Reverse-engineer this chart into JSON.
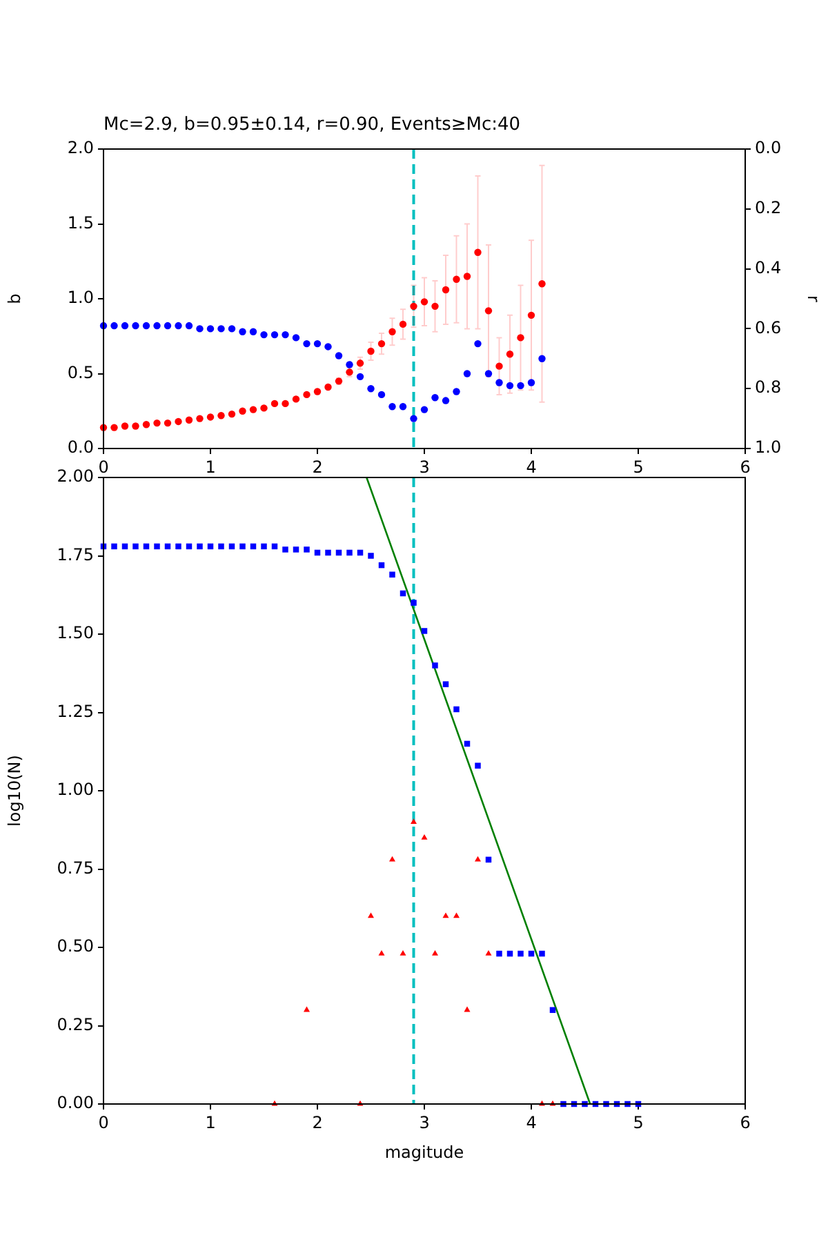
{
  "chart_data": [
    {
      "type": "scatter",
      "title": "Mc=2.9, b=0.95±0.14, r=0.90, Events≥Mc:40",
      "ylabel": "b",
      "y2label": "r",
      "xlim": [
        0,
        6
      ],
      "xticks": [
        0,
        1,
        2,
        3,
        4,
        5,
        6
      ],
      "ylim": [
        0,
        2
      ],
      "yticks": [
        {
          "value": 0,
          "label": "0.0"
        },
        {
          "value": 0.5,
          "label": "0.5"
        },
        {
          "value": 1,
          "label": "1.0"
        },
        {
          "value": 1.5,
          "label": "1.5"
        },
        {
          "value": 2,
          "label": "2.0"
        }
      ],
      "y2lim": [
        1,
        0
      ],
      "y2ticks": [
        {
          "value": 0,
          "label": "0.0"
        },
        {
          "value": 0.2,
          "label": "0.2"
        },
        {
          "value": 0.4,
          "label": "0.4"
        },
        {
          "value": 0.6,
          "label": "0.6"
        },
        {
          "value": 0.8,
          "label": "0.8"
        },
        {
          "value": 1,
          "label": "1.0"
        }
      ],
      "x": [
        0,
        0.1,
        0.2,
        0.3,
        0.4,
        0.5,
        0.6,
        0.7,
        0.8,
        0.9,
        1.0,
        1.1,
        1.2,
        1.3,
        1.4,
        1.5,
        1.6,
        1.7,
        1.8,
        1.9,
        2.0,
        2.1,
        2.2,
        2.3,
        2.4,
        2.5,
        2.6,
        2.7,
        2.8,
        2.9,
        3.0,
        3.1,
        3.2,
        3.3,
        3.4,
        3.5,
        3.6,
        3.7,
        3.8,
        3.9,
        4.0,
        4.1
      ],
      "series": [
        {
          "color": "#ff0000",
          "marker": "circle",
          "values": [
            0.14,
            0.14,
            0.15,
            0.15,
            0.16,
            0.17,
            0.17,
            0.18,
            0.19,
            0.2,
            0.21,
            0.22,
            0.23,
            0.25,
            0.26,
            0.27,
            0.3,
            0.3,
            0.33,
            0.36,
            0.38,
            0.41,
            0.45,
            0.51,
            0.57,
            0.65,
            0.7,
            0.78,
            0.83,
            0.95,
            0.98,
            0.95,
            1.06,
            1.13,
            1.15,
            1.31,
            0.92,
            0.55,
            0.63,
            0.74,
            0.89,
            1.1
          ],
          "errors": [
            null,
            null,
            null,
            null,
            null,
            null,
            null,
            null,
            null,
            null,
            null,
            null,
            null,
            null,
            null,
            null,
            null,
            null,
            null,
            null,
            null,
            null,
            0.02,
            0.03,
            0.04,
            0.06,
            0.07,
            0.09,
            0.1,
            0.14,
            0.16,
            0.17,
            0.23,
            0.29,
            0.35,
            0.51,
            0.44,
            0.19,
            0.26,
            0.35,
            0.5,
            0.79
          ]
        },
        {
          "color": "#0000ff",
          "marker": "circle",
          "axis": "y2",
          "values": [
            0.59,
            0.59,
            0.59,
            0.59,
            0.59,
            0.59,
            0.59,
            0.59,
            0.59,
            0.6,
            0.6,
            0.6,
            0.6,
            0.61,
            0.61,
            0.62,
            0.62,
            0.62,
            0.63,
            0.65,
            0.65,
            0.66,
            0.69,
            0.72,
            0.76,
            0.8,
            0.82,
            0.86,
            0.86,
            0.9,
            0.87,
            0.83,
            0.84,
            0.81,
            0.75,
            0.65,
            0.75,
            0.78,
            0.79,
            0.79,
            0.78,
            0.7
          ]
        }
      ],
      "ref_lines": [
        {
          "axis": "x",
          "value": 2.9,
          "color": "#00bfbf",
          "line_style": "dashed"
        }
      ]
    },
    {
      "type": "scatter",
      "xlabel": "magitude",
      "ylabel": "log10(N)",
      "xlim": [
        0,
        6
      ],
      "xticks": [
        0,
        1,
        2,
        3,
        4,
        5,
        6
      ],
      "ylim": [
        0,
        2
      ],
      "yticks": [
        {
          "value": 0,
          "label": "0.00"
        },
        {
          "value": 0.25,
          "label": "0.25"
        },
        {
          "value": 0.5,
          "label": "0.50"
        },
        {
          "value": 0.75,
          "label": "0.75"
        },
        {
          "value": 1,
          "label": "1.00"
        },
        {
          "value": 1.25,
          "label": "1.25"
        },
        {
          "value": 1.5,
          "label": "1.50"
        },
        {
          "value": 1.75,
          "label": "1.75"
        },
        {
          "value": 2,
          "label": "2.00"
        }
      ],
      "series": [
        {
          "color": "#0000ff",
          "marker": "square",
          "x": [
            0,
            0.1,
            0.2,
            0.3,
            0.4,
            0.5,
            0.6,
            0.7,
            0.8,
            0.9,
            1.0,
            1.1,
            1.2,
            1.3,
            1.4,
            1.5,
            1.6,
            1.7,
            1.8,
            1.9,
            2.0,
            2.1,
            2.2,
            2.3,
            2.4,
            2.5,
            2.6,
            2.7,
            2.8,
            2.9,
            3.0,
            3.1,
            3.2,
            3.3,
            3.4,
            3.5,
            3.6,
            3.7,
            3.8,
            3.9,
            4.0,
            4.1,
            4.2,
            4.3,
            4.4,
            4.5,
            4.6,
            4.7,
            4.8,
            4.9,
            5.0
          ],
          "values": [
            1.78,
            1.78,
            1.78,
            1.78,
            1.78,
            1.78,
            1.78,
            1.78,
            1.78,
            1.78,
            1.78,
            1.78,
            1.78,
            1.78,
            1.78,
            1.78,
            1.78,
            1.77,
            1.77,
            1.77,
            1.76,
            1.76,
            1.76,
            1.76,
            1.76,
            1.75,
            1.72,
            1.69,
            1.63,
            1.6,
            1.51,
            1.4,
            1.34,
            1.26,
            1.15,
            1.08,
            0.78,
            0.48,
            0.48,
            0.48,
            0.48,
            0.48,
            0.3,
            0,
            0,
            0,
            0,
            0,
            0,
            0,
            0
          ]
        },
        {
          "color": "#ff0000",
          "marker": "triangle",
          "x": [
            1.6,
            1.9,
            2.4,
            2.5,
            2.6,
            2.7,
            2.8,
            2.9,
            3.0,
            3.1,
            3.2,
            3.3,
            3.4,
            3.5,
            3.6,
            4.1,
            4.2
          ],
          "values": [
            0,
            0.3,
            0,
            0.6,
            0.48,
            0.78,
            0.48,
            0.9,
            0.85,
            0.48,
            0.6,
            0.6,
            0.3,
            0.78,
            0.48,
            0,
            0
          ]
        },
        {
          "type": "line",
          "color": "#008000",
          "marker": "none",
          "x": [
            2.46,
            4.55
          ],
          "values": [
            2,
            0
          ]
        }
      ],
      "ref_lines": [
        {
          "axis": "x",
          "value": 2.9,
          "color": "#00bfbf",
          "line_style": "dashed"
        }
      ]
    }
  ]
}
